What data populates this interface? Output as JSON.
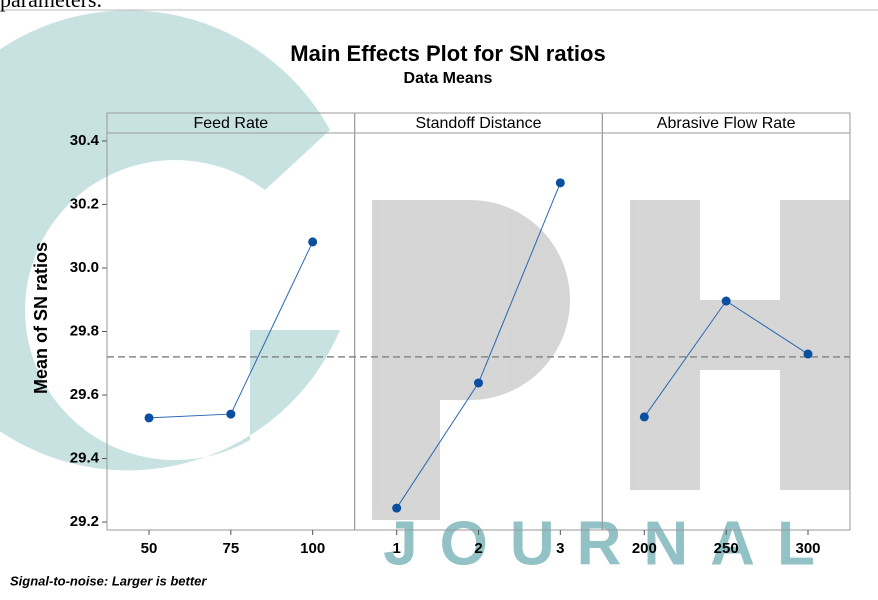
{
  "page_text": "parameters.",
  "watermark": "JOURNAL",
  "chart_data": {
    "type": "line",
    "title": "Main Effects Plot for SN ratios",
    "subtitle": "Data Means",
    "ylabel": "Mean of SN ratios",
    "footnote": "Signal-to-noise: Larger is better",
    "color": "#0b4fa0",
    "reference_line": 29.72,
    "ylim": [
      29.175,
      30.425
    ],
    "yticks": [
      29.2,
      29.4,
      29.6,
      29.8,
      {
        "value": 30,
        "label": "30.0"
      },
      30.2,
      30.4
    ],
    "panels": [
      {
        "name": "Feed Rate",
        "categories": [
          "50",
          "75",
          "100"
        ],
        "values": [
          29.528,
          29.54,
          30.082
        ]
      },
      {
        "name": "Standoff Distance",
        "categories": [
          "1",
          "2",
          "3"
        ],
        "values": [
          29.244,
          29.638,
          30.268
        ]
      },
      {
        "name": "Abrasive Flow Rate",
        "categories": [
          "200",
          "250",
          "300"
        ],
        "values": [
          29.531,
          29.896,
          29.729
        ]
      }
    ]
  }
}
